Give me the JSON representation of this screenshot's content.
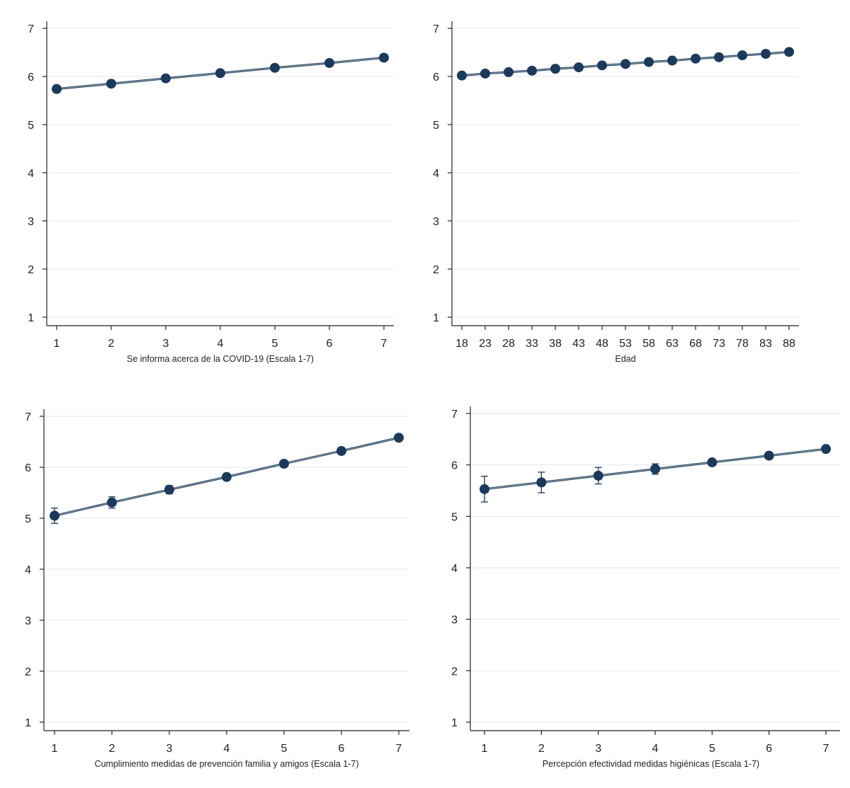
{
  "chart_data": [
    {
      "type": "line",
      "xlabel": "Se informa acerca de la COVID-19 (Escala 1-7)",
      "ylabel": "",
      "ylim": [
        1,
        7
      ],
      "yticks": [
        1,
        2,
        3,
        4,
        5,
        6,
        7
      ],
      "xticks": [
        1,
        2,
        3,
        4,
        5,
        6,
        7
      ],
      "xlim": [
        1,
        7
      ],
      "grid": true,
      "series": [
        {
          "x": [
            1,
            2,
            3,
            4,
            5,
            6,
            7
          ],
          "y": [
            5.74,
            5.85,
            5.96,
            6.07,
            6.18,
            6.28,
            6.39
          ],
          "ci_low": [
            5.68,
            5.8,
            5.92,
            6.04,
            6.15,
            6.25,
            6.35
          ],
          "ci_high": [
            5.8,
            5.9,
            6.0,
            6.1,
            6.21,
            6.31,
            6.43
          ]
        }
      ]
    },
    {
      "type": "line",
      "xlabel": "Edad",
      "ylabel": "",
      "ylim": [
        1,
        7
      ],
      "yticks": [
        1,
        2,
        3,
        4,
        5,
        6,
        7
      ],
      "xticks": [
        18,
        23,
        28,
        33,
        38,
        43,
        48,
        53,
        58,
        63,
        68,
        73,
        78,
        83,
        88
      ],
      "xlim": [
        18,
        88
      ],
      "grid": true,
      "series": [
        {
          "x": [
            18,
            23,
            28,
            33,
            38,
            43,
            48,
            53,
            58,
            63,
            68,
            73,
            78,
            83,
            88
          ],
          "y": [
            6.02,
            6.06,
            6.09,
            6.12,
            6.16,
            6.19,
            6.23,
            6.26,
            6.3,
            6.33,
            6.37,
            6.4,
            6.44,
            6.47,
            6.51
          ],
          "ci_low": [
            5.98,
            6.03,
            6.07,
            6.1,
            6.14,
            6.17,
            6.21,
            6.24,
            6.28,
            6.31,
            6.34,
            6.37,
            6.4,
            6.42,
            6.45
          ],
          "ci_high": [
            6.06,
            6.09,
            6.11,
            6.14,
            6.18,
            6.21,
            6.25,
            6.28,
            6.32,
            6.35,
            6.4,
            6.43,
            6.48,
            6.52,
            6.57
          ]
        }
      ]
    },
    {
      "type": "line",
      "xlabel": "Cumplimiento medidas de prevención familia y amigos (Escala 1-7)",
      "ylabel": "",
      "ylim": [
        1,
        7
      ],
      "yticks": [
        1,
        2,
        3,
        4,
        5,
        6,
        7
      ],
      "xticks": [
        1,
        2,
        3,
        4,
        5,
        6,
        7
      ],
      "xlim": [
        1,
        7
      ],
      "grid": true,
      "series": [
        {
          "x": [
            1,
            2,
            3,
            4,
            5,
            6,
            7
          ],
          "y": [
            5.05,
            5.31,
            5.56,
            5.81,
            6.07,
            6.32,
            6.58
          ],
          "ci_low": [
            4.9,
            5.2,
            5.48,
            5.76,
            6.03,
            6.28,
            6.53
          ],
          "ci_high": [
            5.2,
            5.42,
            5.64,
            5.86,
            6.11,
            6.36,
            6.63
          ]
        }
      ]
    },
    {
      "type": "line",
      "xlabel": "Percepción efectividad medidas higiénicas (Escala 1-7)",
      "ylabel": "",
      "ylim": [
        1,
        7
      ],
      "yticks": [
        1,
        2,
        3,
        4,
        5,
        6,
        7
      ],
      "xticks": [
        1,
        2,
        3,
        4,
        5,
        6,
        7
      ],
      "xlim": [
        1,
        7
      ],
      "grid": true,
      "series": [
        {
          "x": [
            1,
            2,
            3,
            4,
            5,
            6,
            7
          ],
          "y": [
            5.53,
            5.66,
            5.79,
            5.92,
            6.05,
            6.18,
            6.31
          ],
          "ci_low": [
            5.28,
            5.46,
            5.63,
            5.82,
            6.0,
            6.14,
            6.26
          ],
          "ci_high": [
            5.78,
            5.86,
            5.95,
            6.02,
            6.1,
            6.22,
            6.36
          ]
        }
      ]
    }
  ]
}
